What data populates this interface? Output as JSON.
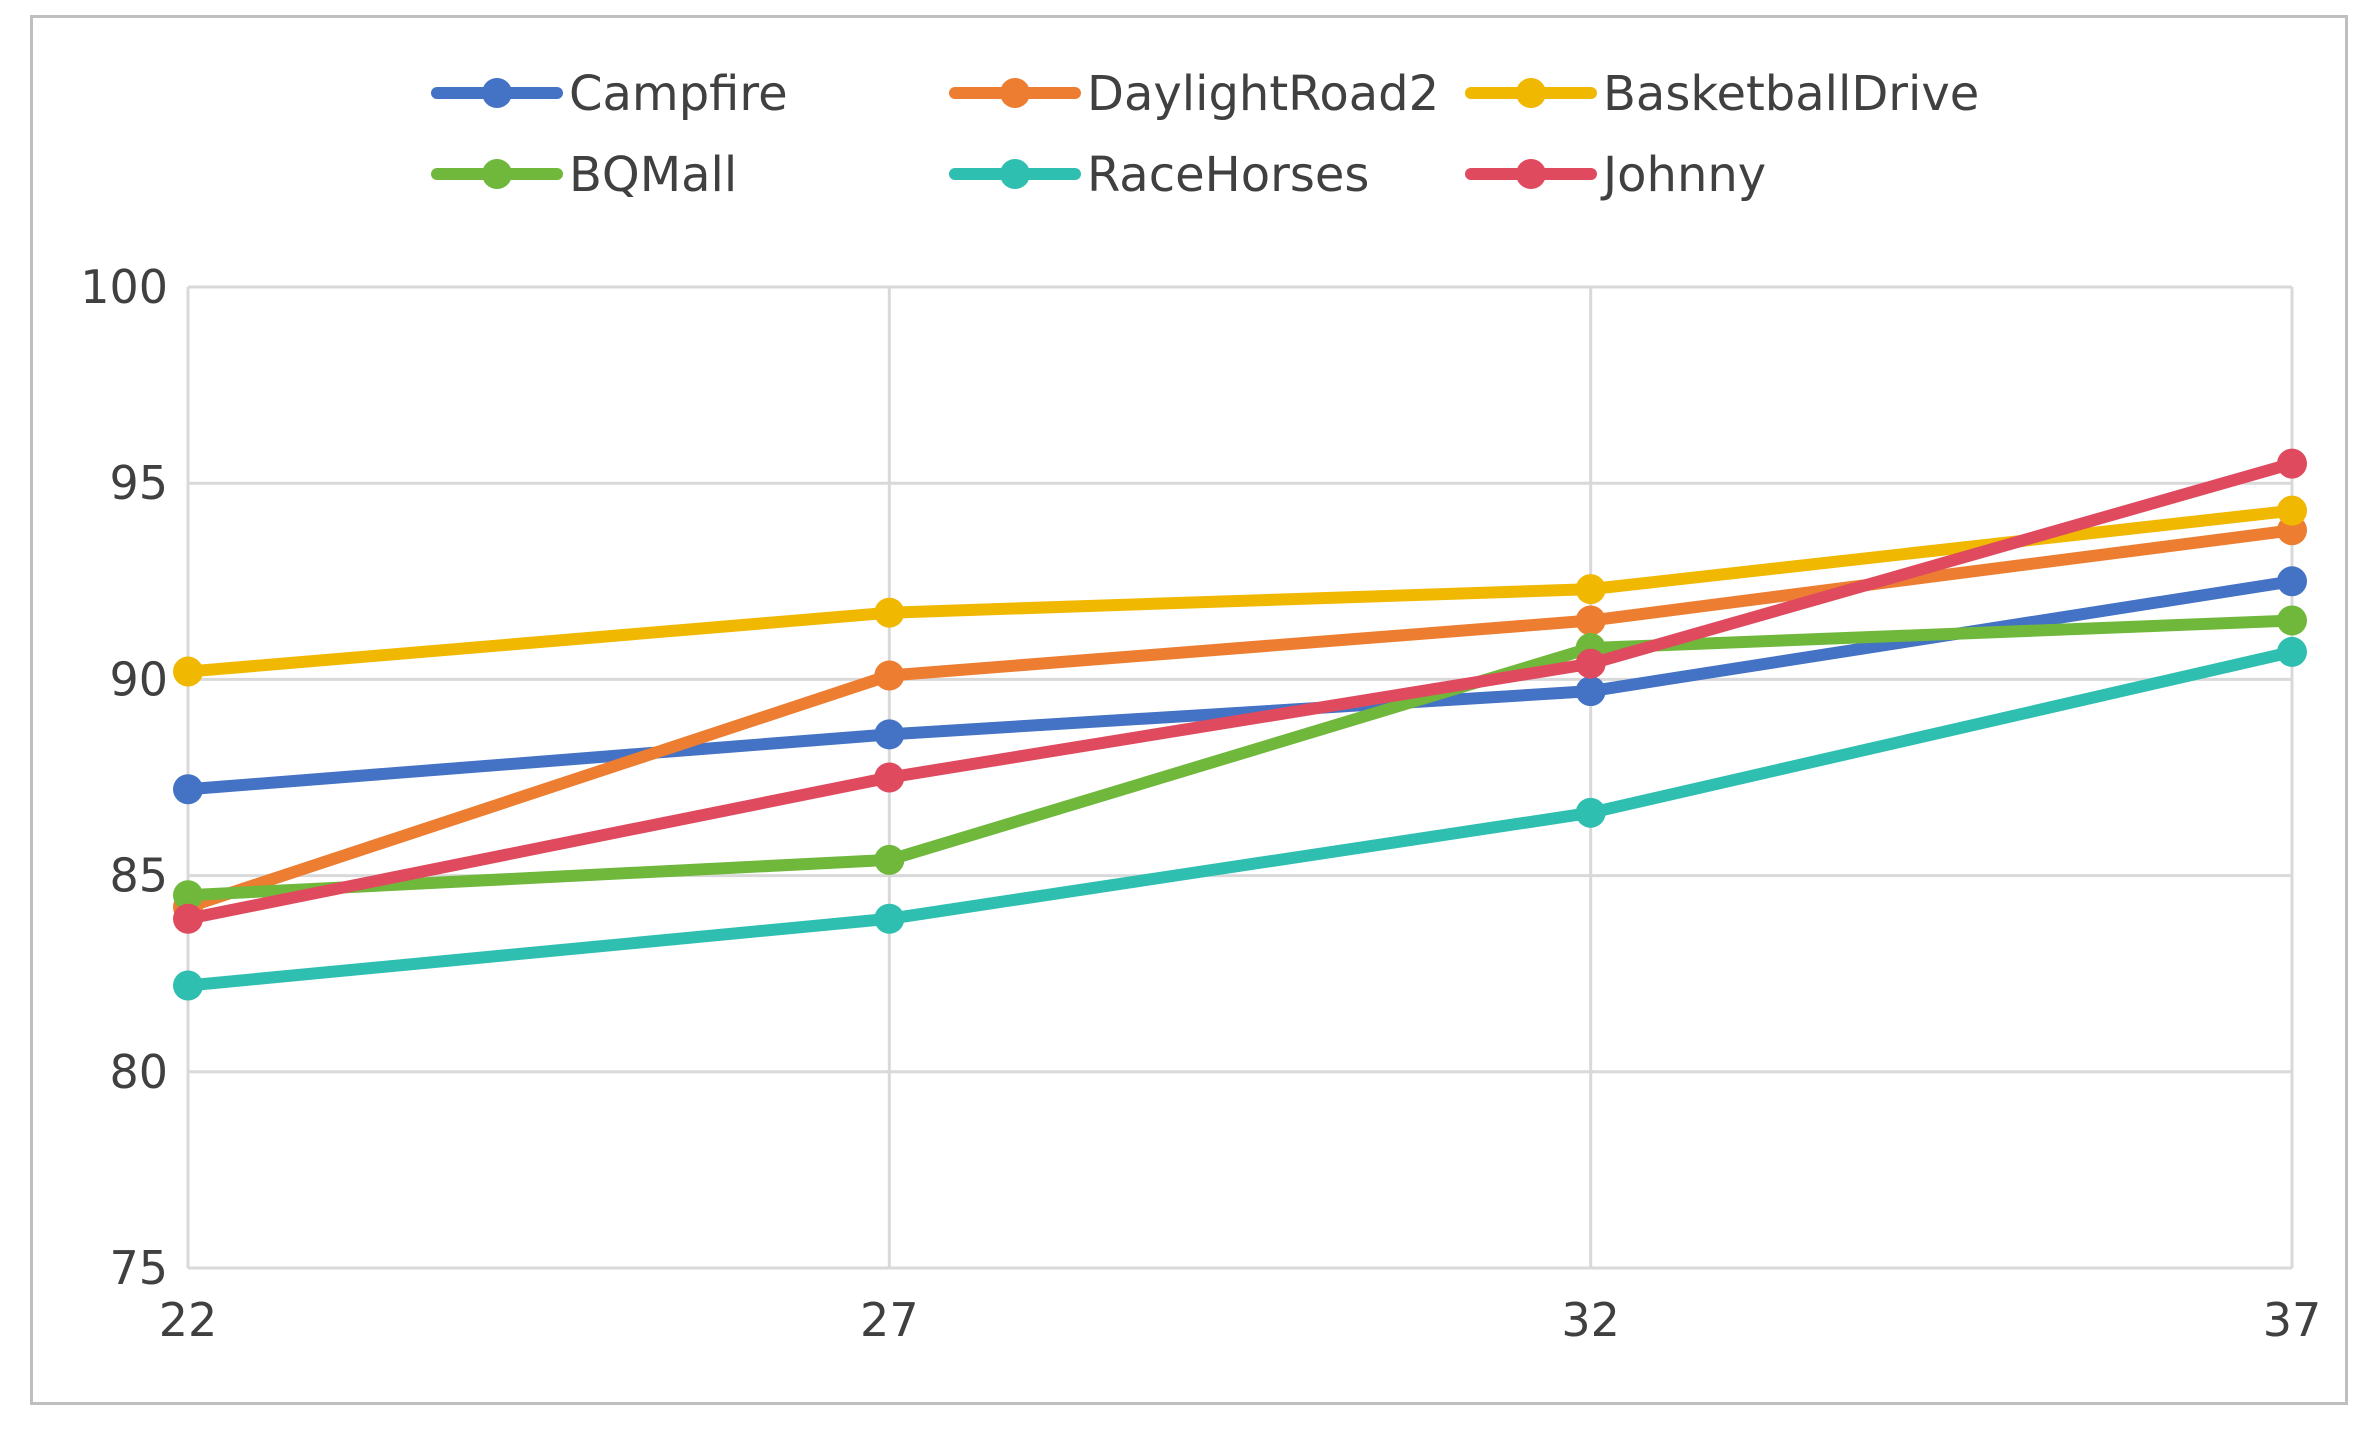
{
  "chart_data": {
    "type": "line",
    "title": "",
    "xlabel": "",
    "ylabel": "",
    "x": [
      22,
      27,
      32,
      37
    ],
    "x_tick_labels": [
      "22",
      "27",
      "32",
      "37"
    ],
    "y_tick_labels": [
      "75",
      "80",
      "85",
      "90",
      "95",
      "100"
    ],
    "y_ticks": [
      75,
      80,
      85,
      90,
      95,
      100
    ],
    "ylim": [
      75,
      100
    ],
    "grid": true,
    "legend_position": "top",
    "series": [
      {
        "name": "Campfire",
        "color": "#4472C4",
        "values": [
          87.2,
          88.6,
          89.7,
          92.5
        ]
      },
      {
        "name": "DaylightRoad2",
        "color": "#ED7D31",
        "values": [
          84.2,
          90.1,
          91.5,
          93.8
        ]
      },
      {
        "name": "BasketballDrive",
        "color": "#F0B800",
        "values": [
          90.2,
          91.7,
          92.3,
          94.3
        ]
      },
      {
        "name": "BQMall",
        "color": "#70B83C",
        "values": [
          84.5,
          85.4,
          90.8,
          91.5
        ]
      },
      {
        "name": "RaceHorses",
        "color": "#2EBFB0",
        "values": [
          82.2,
          83.9,
          86.6,
          90.7
        ]
      },
      {
        "name": "Johnny",
        "color": "#E04A5E",
        "values": [
          83.9,
          87.5,
          90.4,
          95.5
        ]
      }
    ]
  }
}
